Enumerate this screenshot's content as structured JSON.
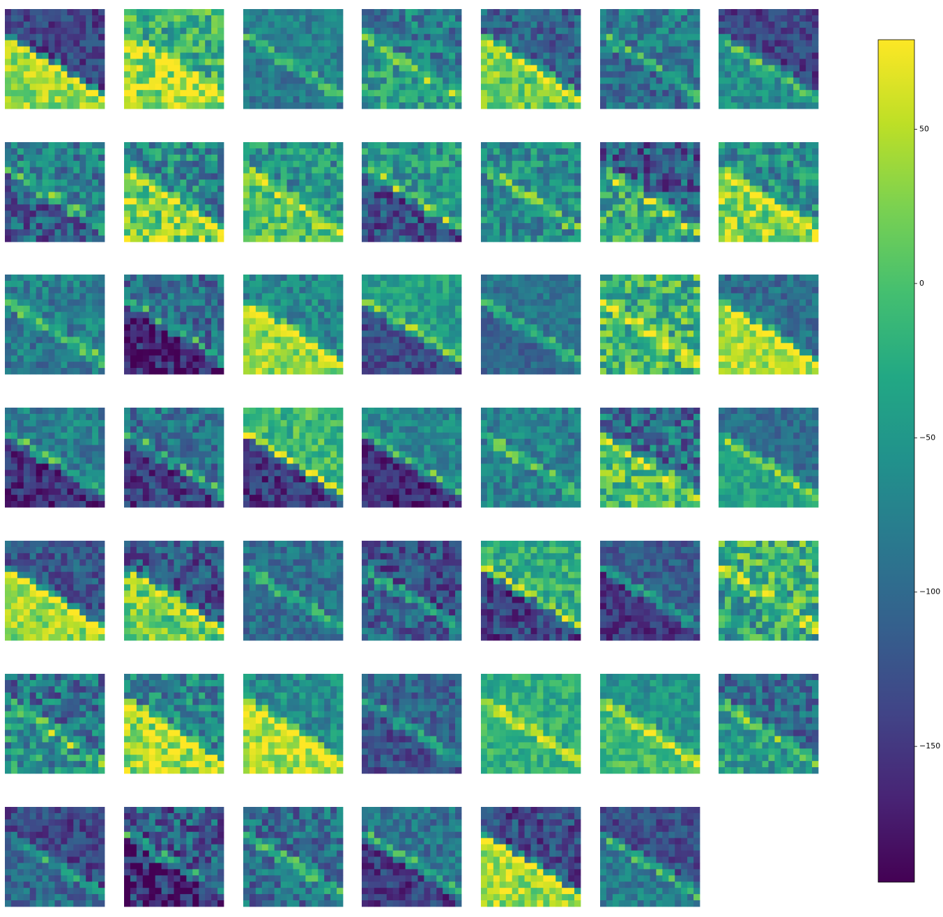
{
  "chart_data": {
    "type": "heatmap-grid",
    "colormap": "viridis",
    "ylim": [
      -194,
      79
    ],
    "yticks": [
      50,
      0,
      {
        "value": -50,
        "label": "−50"
      },
      {
        "value": -100,
        "label": "−100"
      },
      {
        "value": -150,
        "label": "−150"
      }
    ]
  }
}
